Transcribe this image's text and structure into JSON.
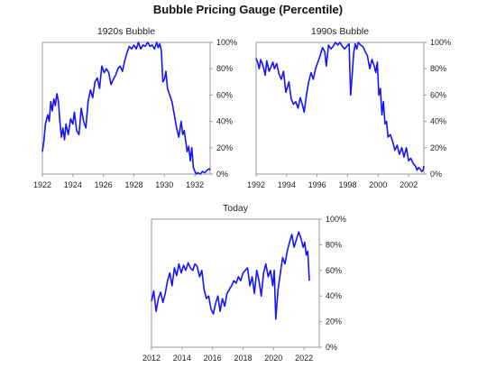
{
  "title": "Bubble Pricing Gauge (Percentile)",
  "colors": {
    "series": "#1414ff",
    "frame": "#9a9a9a"
  },
  "chart_data": [
    {
      "type": "line",
      "title": "1920s Bubble",
      "xlim": [
        1922,
        1933
      ],
      "ylim": [
        0,
        100
      ],
      "x_ticks": [
        "1922",
        "1924",
        "1926",
        "1928",
        "1930",
        "1932"
      ],
      "y_ticks": [
        "0%",
        "20%",
        "40%",
        "60%",
        "80%",
        "100%"
      ],
      "grid": false,
      "x": [
        1922.0,
        1922.1,
        1922.2,
        1922.35,
        1922.45,
        1922.55,
        1922.65,
        1922.75,
        1922.85,
        1922.95,
        1923.05,
        1923.15,
        1923.25,
        1923.35,
        1923.45,
        1923.55,
        1923.7,
        1923.85,
        1924.0,
        1924.1,
        1924.25,
        1924.4,
        1924.55,
        1924.7,
        1924.85,
        1925.0,
        1925.15,
        1925.3,
        1925.45,
        1925.6,
        1925.75,
        1925.9,
        1926.05,
        1926.2,
        1926.35,
        1926.5,
        1926.65,
        1926.8,
        1926.95,
        1927.1,
        1927.25,
        1927.4,
        1927.55,
        1927.7,
        1927.85,
        1928.0,
        1928.15,
        1928.3,
        1928.45,
        1928.6,
        1928.75,
        1928.9,
        1929.05,
        1929.2,
        1929.35,
        1929.5,
        1929.6,
        1929.7,
        1929.8,
        1929.9,
        1930.0,
        1930.1,
        1930.2,
        1930.35,
        1930.5,
        1930.65,
        1930.8,
        1930.95,
        1931.1,
        1931.2,
        1931.3,
        1931.4,
        1931.5,
        1931.6,
        1931.7,
        1931.8,
        1931.9,
        1932.0,
        1932.1,
        1932.2,
        1932.35,
        1932.5,
        1932.65,
        1932.8,
        1932.95,
        1933.0
      ],
      "y": [
        17,
        25,
        38,
        45,
        40,
        55,
        48,
        57,
        52,
        61,
        55,
        40,
        28,
        35,
        26,
        38,
        30,
        42,
        38,
        47,
        33,
        30,
        50,
        40,
        35,
        55,
        64,
        58,
        70,
        73,
        65,
        82,
        77,
        80,
        77,
        68,
        72,
        75,
        80,
        82,
        78,
        86,
        92,
        97,
        95,
        98,
        95,
        100,
        95,
        98,
        97,
        100,
        97,
        98,
        95,
        100,
        96,
        99,
        94,
        70,
        72,
        78,
        65,
        60,
        55,
        45,
        35,
        28,
        40,
        30,
        33,
        25,
        17,
        21,
        10,
        20,
        5,
        2,
        0,
        1,
        0,
        2,
        1,
        3,
        4,
        3
      ]
    },
    {
      "type": "line",
      "title": "1990s Bubble",
      "xlim": [
        1992,
        2003
      ],
      "ylim": [
        0,
        100
      ],
      "x_ticks": [
        "1992",
        "1994",
        "1996",
        "1998",
        "2000",
        "2002"
      ],
      "y_ticks": [
        "0%",
        "20%",
        "40%",
        "60%",
        "80%",
        "100%"
      ],
      "grid": false,
      "x": [
        1992.0,
        1992.1,
        1992.2,
        1992.3,
        1992.4,
        1992.5,
        1992.6,
        1992.7,
        1992.85,
        1993.0,
        1993.1,
        1993.2,
        1993.35,
        1993.5,
        1993.65,
        1993.8,
        1993.95,
        1994.05,
        1994.15,
        1994.3,
        1994.45,
        1994.6,
        1994.75,
        1994.9,
        1995.05,
        1995.15,
        1995.3,
        1995.45,
        1995.6,
        1995.75,
        1995.9,
        1996.05,
        1996.2,
        1996.35,
        1996.5,
        1996.6,
        1996.75,
        1996.9,
        1997.05,
        1997.2,
        1997.35,
        1997.5,
        1997.65,
        1997.8,
        1997.95,
        1998.1,
        1998.2,
        1998.3,
        1998.4,
        1998.5,
        1998.6,
        1998.7,
        1998.85,
        1999.0,
        1999.15,
        1999.3,
        1999.45,
        1999.6,
        1999.75,
        1999.85,
        1999.95,
        2000.05,
        2000.15,
        2000.25,
        2000.35,
        2000.45,
        2000.55,
        2000.65,
        2000.8,
        2000.95,
        2001.1,
        2001.25,
        2001.4,
        2001.55,
        2001.7,
        2001.85,
        2002.0,
        2002.15,
        2002.3,
        2002.45,
        2002.55,
        2002.65,
        2002.75,
        2002.85,
        2002.95,
        2003.0
      ],
      "y": [
        88,
        85,
        80,
        87,
        84,
        80,
        75,
        86,
        78,
        82,
        85,
        80,
        84,
        76,
        72,
        78,
        62,
        66,
        70,
        57,
        53,
        55,
        50,
        58,
        52,
        47,
        60,
        70,
        77,
        72,
        80,
        85,
        90,
        96,
        93,
        82,
        98,
        95,
        97,
        100,
        98,
        100,
        97,
        95,
        97,
        99,
        60,
        75,
        92,
        99,
        95,
        100,
        98,
        97,
        93,
        90,
        80,
        87,
        82,
        77,
        85,
        60,
        65,
        45,
        55,
        38,
        40,
        28,
        30,
        25,
        18,
        22,
        15,
        20,
        13,
        20,
        10,
        12,
        8,
        6,
        3,
        5,
        4,
        2,
        3,
        6
      ]
    },
    {
      "type": "line",
      "title": "Today",
      "xlim": [
        2012,
        2023
      ],
      "ylim": [
        0,
        100
      ],
      "x_ticks": [
        "2012",
        "2014",
        "2016",
        "2018",
        "2020",
        "2022"
      ],
      "y_ticks": [
        "0%",
        "20%",
        "40%",
        "60%",
        "80%",
        "100%"
      ],
      "grid": false,
      "x": [
        2012.0,
        2012.15,
        2012.3,
        2012.45,
        2012.6,
        2012.75,
        2012.9,
        2013.05,
        2013.2,
        2013.35,
        2013.5,
        2013.65,
        2013.8,
        2013.95,
        2014.1,
        2014.25,
        2014.4,
        2014.55,
        2014.7,
        2014.85,
        2015.0,
        2015.15,
        2015.3,
        2015.45,
        2015.6,
        2015.75,
        2015.9,
        2016.05,
        2016.2,
        2016.35,
        2016.5,
        2016.65,
        2016.8,
        2016.95,
        2017.1,
        2017.25,
        2017.4,
        2017.55,
        2017.7,
        2017.85,
        2018.0,
        2018.15,
        2018.3,
        2018.45,
        2018.6,
        2018.75,
        2018.9,
        2019.05,
        2019.2,
        2019.35,
        2019.5,
        2019.65,
        2019.8,
        2019.95,
        2020.05,
        2020.15,
        2020.3,
        2020.45,
        2020.6,
        2020.75,
        2020.9,
        2021.05,
        2021.2,
        2021.35,
        2021.5,
        2021.65,
        2021.8,
        2021.95,
        2022.05,
        2022.15,
        2022.25,
        2022.35
      ],
      "y": [
        36,
        44,
        28,
        38,
        43,
        35,
        42,
        52,
        58,
        48,
        62,
        56,
        65,
        58,
        64,
        60,
        66,
        62,
        60,
        65,
        63,
        55,
        60,
        45,
        38,
        40,
        30,
        26,
        34,
        40,
        28,
        38,
        32,
        42,
        45,
        48,
        52,
        50,
        55,
        52,
        58,
        60,
        62,
        48,
        55,
        42,
        60,
        52,
        40,
        58,
        65,
        55,
        60,
        48,
        60,
        22,
        45,
        58,
        70,
        65,
        75,
        82,
        88,
        78,
        84,
        90,
        85,
        78,
        82,
        72,
        75,
        52
      ]
    }
  ]
}
